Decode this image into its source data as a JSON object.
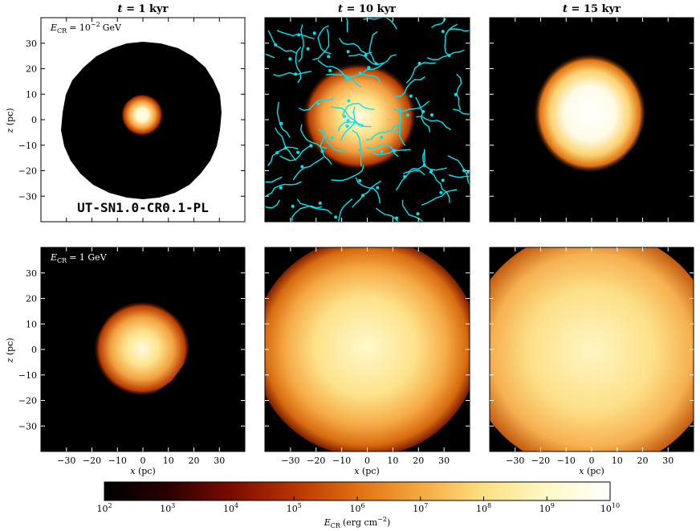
{
  "chart_data": {
    "type": "heatmap",
    "run_label": "UT-SN1.0-CR0.1-PL",
    "column_titles": [
      "t = 1 kyr",
      "t = 10 kyr",
      "t = 15 kyr"
    ],
    "row_labels": [
      "E_CR = 10^-2 GeV",
      "E_CR = 1 GeV"
    ],
    "xlabel": "x (pc)",
    "ylabel": "z (pc)",
    "xlim": [
      -40,
      40
    ],
    "ylim": [
      -40,
      40
    ],
    "xticks": [
      "−30",
      "−20",
      "−10",
      "0",
      "10",
      "20",
      "30"
    ],
    "yticks": [
      "30",
      "20",
      "10",
      "0",
      "−10",
      "−20",
      "−30"
    ],
    "colorbar": {
      "label": "E_CR (erg cm^-2)",
      "scale": "log",
      "range": [
        100,
        10000000000
      ],
      "ticks": [
        "10^2",
        "10^3",
        "10^4",
        "10^5",
        "10^6",
        "10^7",
        "10^8",
        "10^9",
        "10^10"
      ],
      "colormap": "afmhot"
    },
    "panels": [
      {
        "row": 0,
        "col": 0,
        "bright_radius_pc": 9,
        "front_radius_pc": 32,
        "background": "white"
      },
      {
        "row": 0,
        "col": 1,
        "bright_radius_pc": 20,
        "streamlines": true,
        "streamline_color": "#00e5ee"
      },
      {
        "row": 0,
        "col": 2,
        "bright_radius_pc": 22
      },
      {
        "row": 1,
        "col": 0,
        "bright_radius_pc": 18
      },
      {
        "row": 1,
        "col": 1,
        "bright_radius_pc": 38
      },
      {
        "row": 1,
        "col": 2,
        "bright_radius_pc": 42
      }
    ]
  },
  "labels": {
    "title_t": "t",
    "titles_val": [
      "= 1 kyr",
      "= 10 kyr",
      "= 15 kyr"
    ],
    "ecr_row1": "E",
    "ecr_row1_sub": "CR",
    "ecr_row1_val": "= 10",
    "ecr_row1_exp": "−2",
    "ecr_row1_unit": "GeV",
    "ecr_row2": "E",
    "ecr_row2_sub": "CR",
    "ecr_row2_val": "= 1 GeV",
    "x_axis_label": "x (pc)",
    "z_axis_label": "z (pc)",
    "cbar_label_main": "E",
    "cbar_label_sub": "CR",
    "cbar_label_unit": "(erg cm",
    "cbar_label_exp": "−2",
    "cbar_label_close": ")"
  },
  "colors": {
    "streamlines": "#00e5ee",
    "background_hot": "#000000"
  }
}
